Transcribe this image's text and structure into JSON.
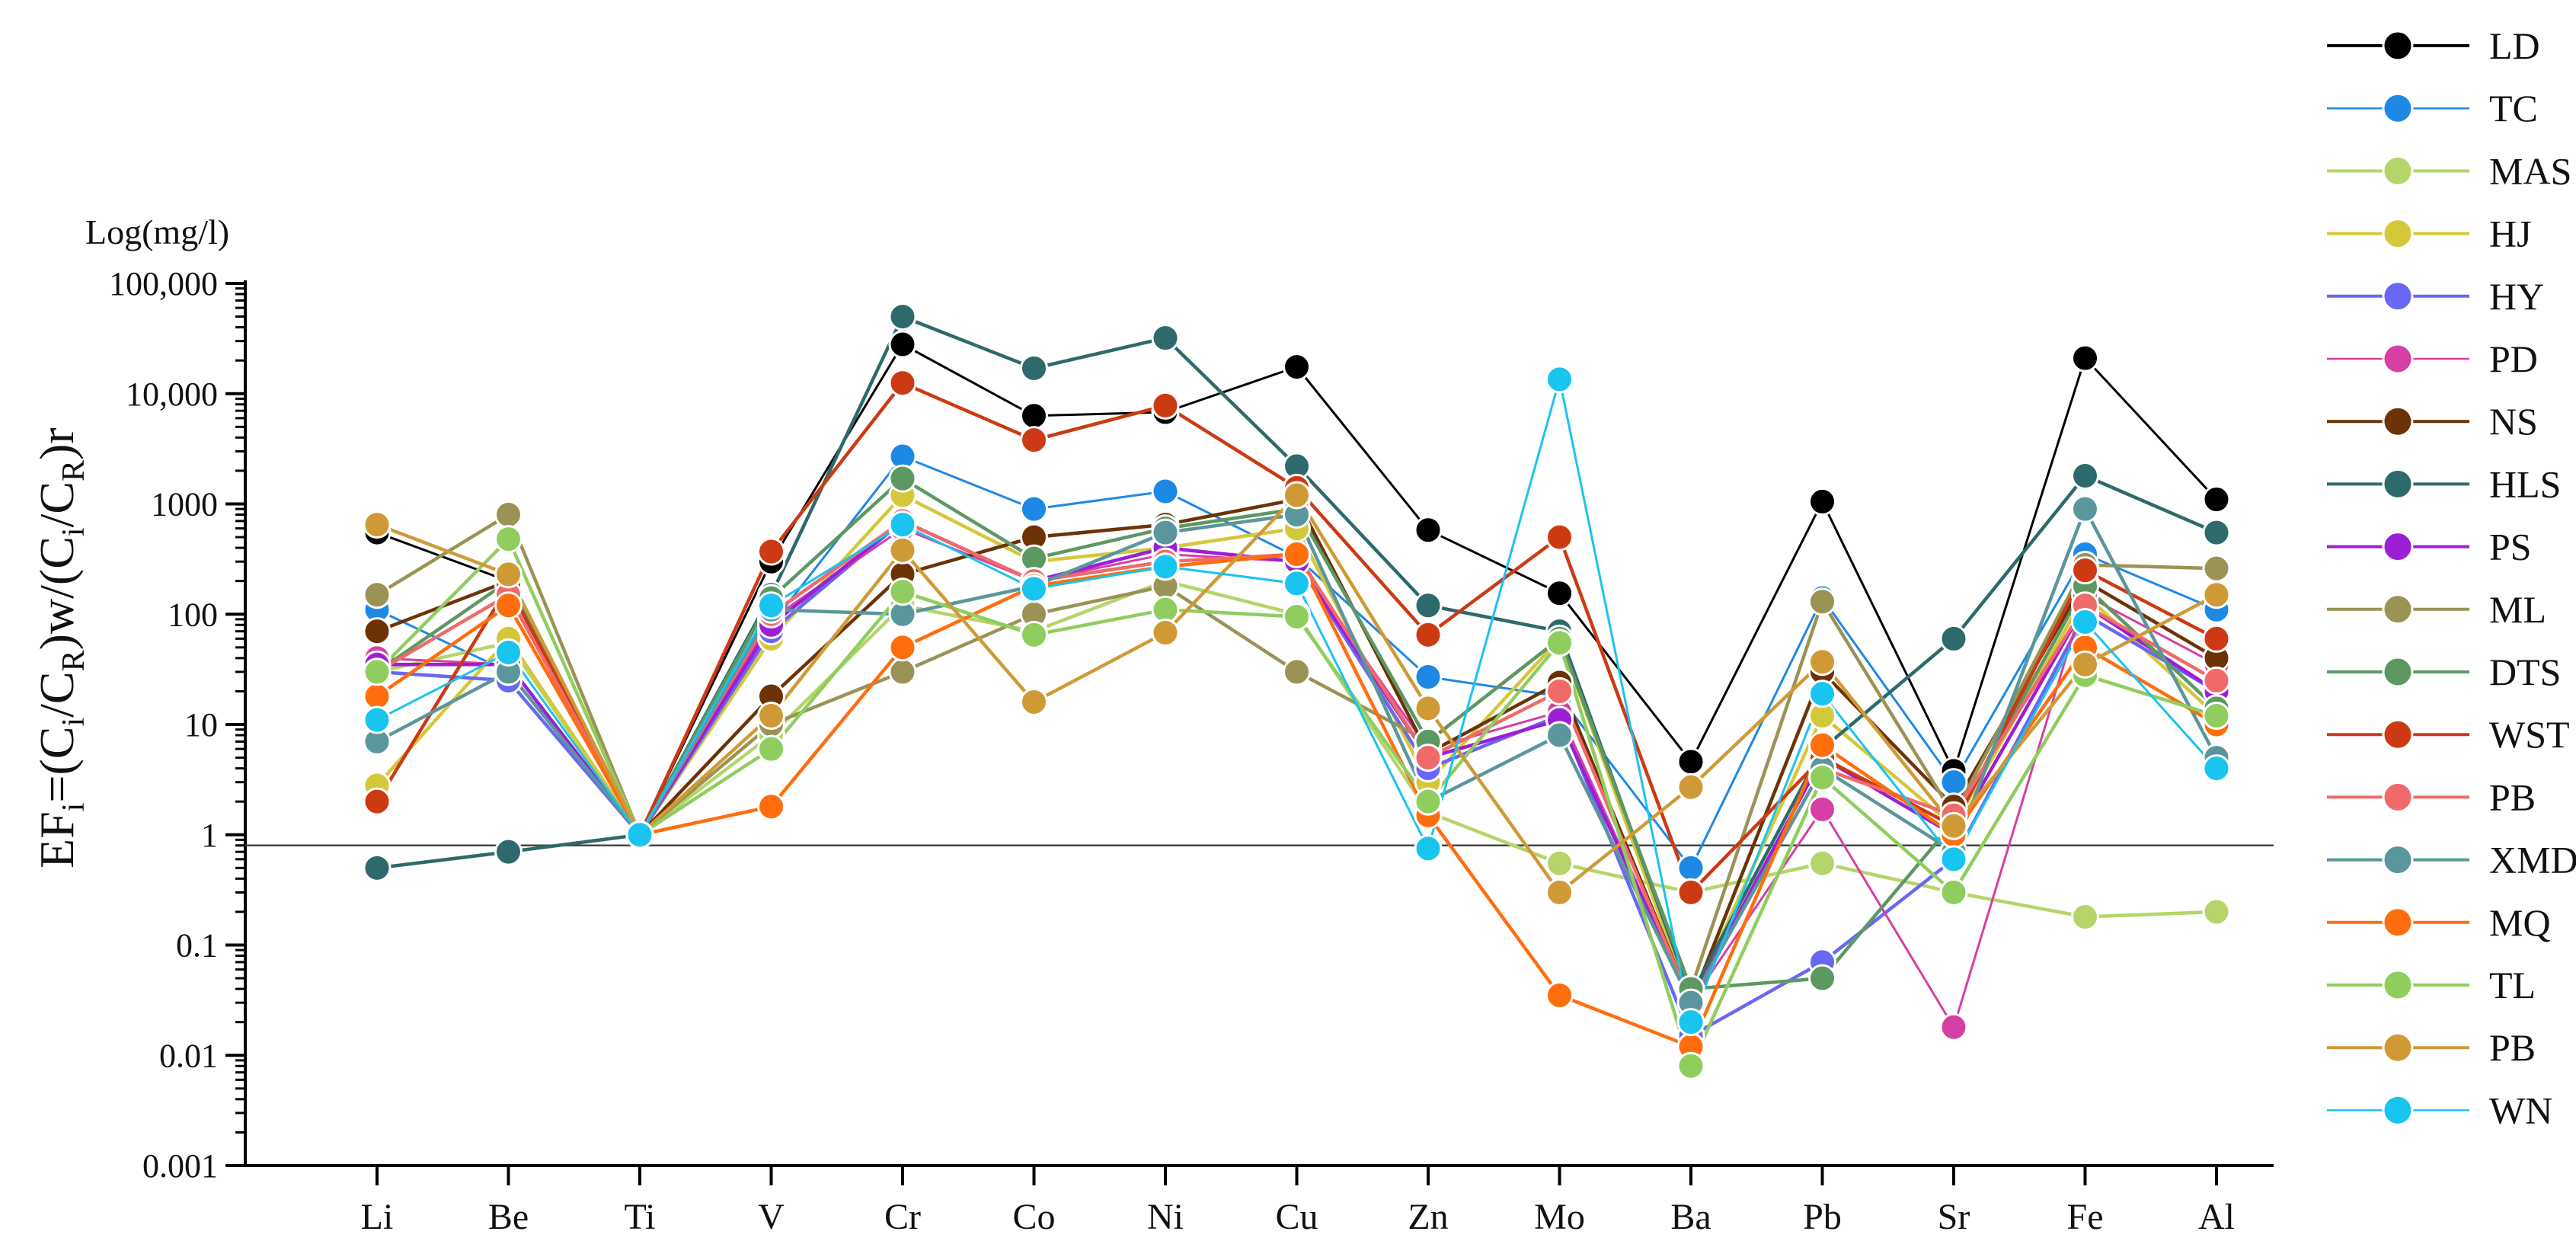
{
  "chart_data": {
    "type": "line",
    "title": "",
    "xlabel": "",
    "ylabel_parts": [
      "EF",
      "i",
      "=(C",
      "i",
      "/C",
      "R",
      ")w/(C",
      "i",
      "/C",
      "R",
      ")r"
    ],
    "y_unit_label": "Log(mg/l)",
    "yscale": "log",
    "ylim": [
      0.001,
      100000
    ],
    "y_ticks": [
      {
        "value": 100000,
        "label": "100,000"
      },
      {
        "value": 10000,
        "label": "10,000"
      },
      {
        "value": 1000,
        "label": "1000"
      },
      {
        "value": 100,
        "label": "100"
      },
      {
        "value": 10,
        "label": "10"
      },
      {
        "value": 1,
        "label": "1"
      },
      {
        "value": 0.1,
        "label": "0.1"
      },
      {
        "value": 0.01,
        "label": "0.01"
      },
      {
        "value": 0.001,
        "label": "0.001"
      }
    ],
    "reference_line": 0.8,
    "legend_position": "right",
    "categories": [
      "Li",
      "Be",
      "Ti",
      "V",
      "Cr",
      "Co",
      "Ni",
      "Cu",
      "Zn",
      "Mo",
      "Ba",
      "Pb",
      "Sr",
      "Fe",
      "Al"
    ],
    "series": [
      {
        "name": "LD",
        "color": "#000000",
        "values": [
          550,
          200,
          1,
          300,
          28000,
          6300,
          6800,
          17500,
          580,
          155,
          4.6,
          1050,
          3.8,
          21000,
          1100
        ]
      },
      {
        "name": "TC",
        "color": "#1e88e5",
        "values": [
          110,
          30,
          1,
          80,
          2700,
          900,
          1300,
          330,
          27,
          18,
          0.5,
          140,
          3.0,
          350,
          110
        ]
      },
      {
        "name": "MAS",
        "color": "#b5d56a",
        "values": [
          30,
          55,
          1,
          8,
          120,
          70,
          200,
          100,
          1.6,
          0.55,
          0.3,
          0.55,
          0.3,
          0.18,
          0.2
        ]
      },
      {
        "name": "HJ",
        "color": "#d4c83a",
        "values": [
          2.8,
          60,
          1,
          60,
          1200,
          300,
          400,
          600,
          3,
          60,
          0.03,
          12,
          1.2,
          150,
          12
        ]
      },
      {
        "name": "HY",
        "color": "#6a67f2",
        "values": [
          30,
          25,
          1,
          70,
          700,
          200,
          400,
          300,
          4,
          12,
          0.015,
          0.07,
          0.6,
          100,
          20
        ]
      },
      {
        "name": "PD",
        "color": "#d63fa3",
        "values": [
          40,
          35,
          1,
          90,
          600,
          200,
          350,
          300,
          6,
          13,
          0.03,
          1.7,
          0.018,
          150,
          35
        ]
      },
      {
        "name": "NS",
        "color": "#6b3306",
        "values": [
          70,
          200,
          1,
          18,
          230,
          500,
          650,
          1100,
          5.5,
          24,
          0.03,
          30,
          1.8,
          200,
          40
        ]
      },
      {
        "name": "HLS",
        "color": "#2e6a6b",
        "values": [
          0.5,
          0.7,
          1,
          150,
          50000,
          17000,
          32000,
          2200,
          120,
          70,
          0.035,
          6,
          60,
          1800,
          550
        ]
      },
      {
        "name": "PS",
        "color": "#9c1ed6",
        "values": [
          35,
          35,
          1,
          80,
          700,
          200,
          400,
          300,
          5,
          11,
          0.03,
          5,
          1.0,
          120,
          20
        ]
      },
      {
        "name": "ML",
        "color": "#9a9355",
        "values": [
          150,
          800,
          1,
          10,
          30,
          100,
          180,
          30,
          7,
          60,
          0.04,
          130,
          1.5,
          280,
          260
        ]
      },
      {
        "name": "DTS",
        "color": "#5d9863",
        "values": [
          30,
          200,
          1,
          140,
          1700,
          320,
          600,
          900,
          7,
          60,
          0.04,
          0.05,
          1.3,
          180,
          14
        ]
      },
      {
        "name": "WST",
        "color": "#cc3a14",
        "values": [
          2.0,
          180,
          1,
          370,
          12500,
          3800,
          7800,
          1400,
          65,
          500,
          0.3,
          5,
          1.2,
          250,
          60
        ]
      },
      {
        "name": "PB",
        "color": "#f06a6a",
        "values": [
          30,
          150,
          1,
          100,
          700,
          200,
          300,
          350,
          5,
          20,
          0.03,
          4,
          1.5,
          120,
          25
        ]
      },
      {
        "name": "XMD",
        "color": "#5b969c",
        "values": [
          7,
          30,
          1,
          110,
          100,
          180,
          550,
          800,
          2,
          8,
          0.03,
          4,
          0.7,
          900,
          5
        ]
      },
      {
        "name": "MQ",
        "color": "#ff6d0d",
        "values": [
          18,
          120,
          1,
          1.8,
          50,
          180,
          270,
          350,
          1.5,
          0.035,
          0.012,
          6.5,
          1.0,
          50,
          10
        ]
      },
      {
        "name": "TL",
        "color": "#8fcd5f",
        "values": [
          30,
          480,
          1,
          6,
          160,
          65,
          110,
          95,
          2,
          55,
          0.008,
          3.3,
          0.3,
          28,
          12
        ]
      },
      {
        "name": "PB",
        "color": "#cf9a36",
        "values": [
          650,
          230,
          1,
          12,
          380,
          16,
          68,
          1200,
          14,
          0.3,
          2.7,
          37,
          1.2,
          35,
          150
        ]
      },
      {
        "name": "WN",
        "color": "#19c4ef",
        "values": [
          11,
          45,
          1,
          120,
          650,
          170,
          270,
          190,
          0.75,
          13500,
          0.02,
          19,
          0.6,
          85,
          4
        ]
      }
    ]
  }
}
